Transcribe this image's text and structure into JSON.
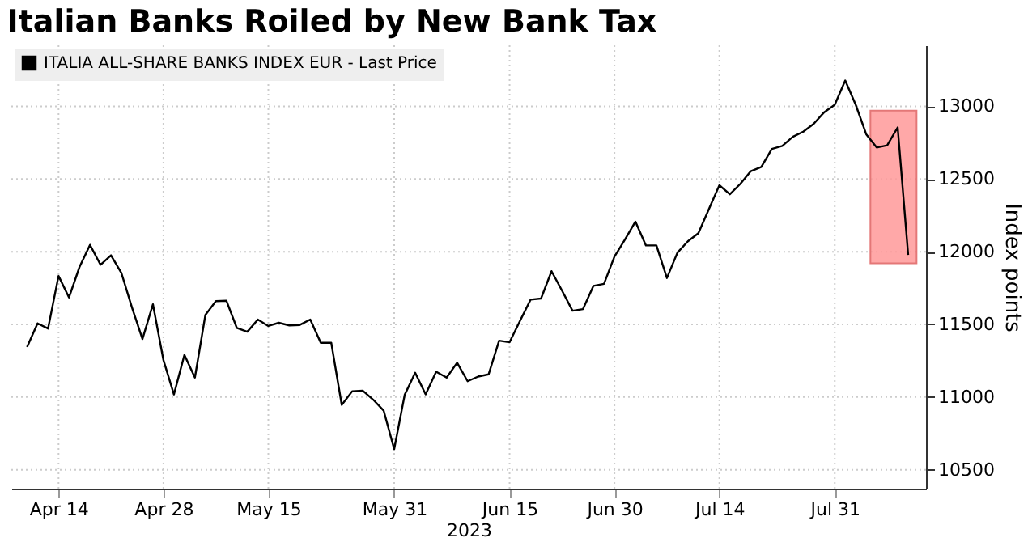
{
  "chart_data": {
    "type": "line",
    "title": "Italian Banks Roiled by New Bank Tax",
    "xlabel": "2023",
    "ylabel": "Index points",
    "categories": [
      null,
      null,
      null,
      "Apr 14",
      null,
      null,
      null,
      null,
      null,
      null,
      null,
      null,
      null,
      "Apr 28",
      null,
      null,
      null,
      null,
      null,
      null,
      null,
      null,
      null,
      "May 15",
      null,
      null,
      null,
      null,
      null,
      null,
      null,
      null,
      null,
      null,
      null,
      "May 31",
      null,
      null,
      null,
      null,
      null,
      null,
      null,
      null,
      null,
      null,
      "Jun 15",
      null,
      null,
      null,
      null,
      null,
      null,
      null,
      null,
      null,
      "Jun 30",
      null,
      null,
      null,
      null,
      null,
      null,
      null,
      null,
      null,
      "Jul 14",
      null,
      null,
      null,
      null,
      null,
      null,
      null,
      null,
      null,
      null,
      "Jul 31",
      null,
      null,
      null,
      null,
      null,
      null,
      null
    ],
    "series": [
      {
        "name": "ITALIA ALL-SHARE BANKS INDEX EUR - Last Price",
        "color": "#000000",
        "values": [
          11344,
          11507,
          11471,
          11833,
          11685,
          11895,
          12047,
          11910,
          11975,
          11852,
          11616,
          11399,
          11638,
          11254,
          11018,
          11290,
          11134,
          11565,
          11660,
          11663,
          11475,
          11449,
          11533,
          11489,
          11511,
          11493,
          11496,
          11533,
          11373,
          11373,
          10946,
          11040,
          11044,
          10982,
          10906,
          10641,
          11015,
          11167,
          11018,
          11174,
          11134,
          11236,
          11109,
          11141,
          11156,
          11388,
          11377,
          11525,
          11670,
          11678,
          11866,
          11732,
          11594,
          11605,
          11765,
          11779,
          11967,
          12083,
          12207,
          12043,
          12043,
          11819,
          11993,
          12072,
          12127,
          12293,
          12457,
          12395,
          12467,
          12554,
          12583,
          12707,
          12728,
          12790,
          12826,
          12880,
          12960,
          13011,
          13178,
          13011,
          12808,
          12717,
          12732,
          12855,
          11978
        ]
      }
    ],
    "ylim": [
      10370,
      13420
    ],
    "yticks": [
      10500,
      11000,
      11500,
      12000,
      12500,
      13000
    ],
    "bands": [
      {
        "axis": "y",
        "from": 11920,
        "to": 12970,
        "color": "#ff9999"
      }
    ],
    "grid": true,
    "legend": "top left",
    "line_style": "solid",
    "marker": "none"
  }
}
